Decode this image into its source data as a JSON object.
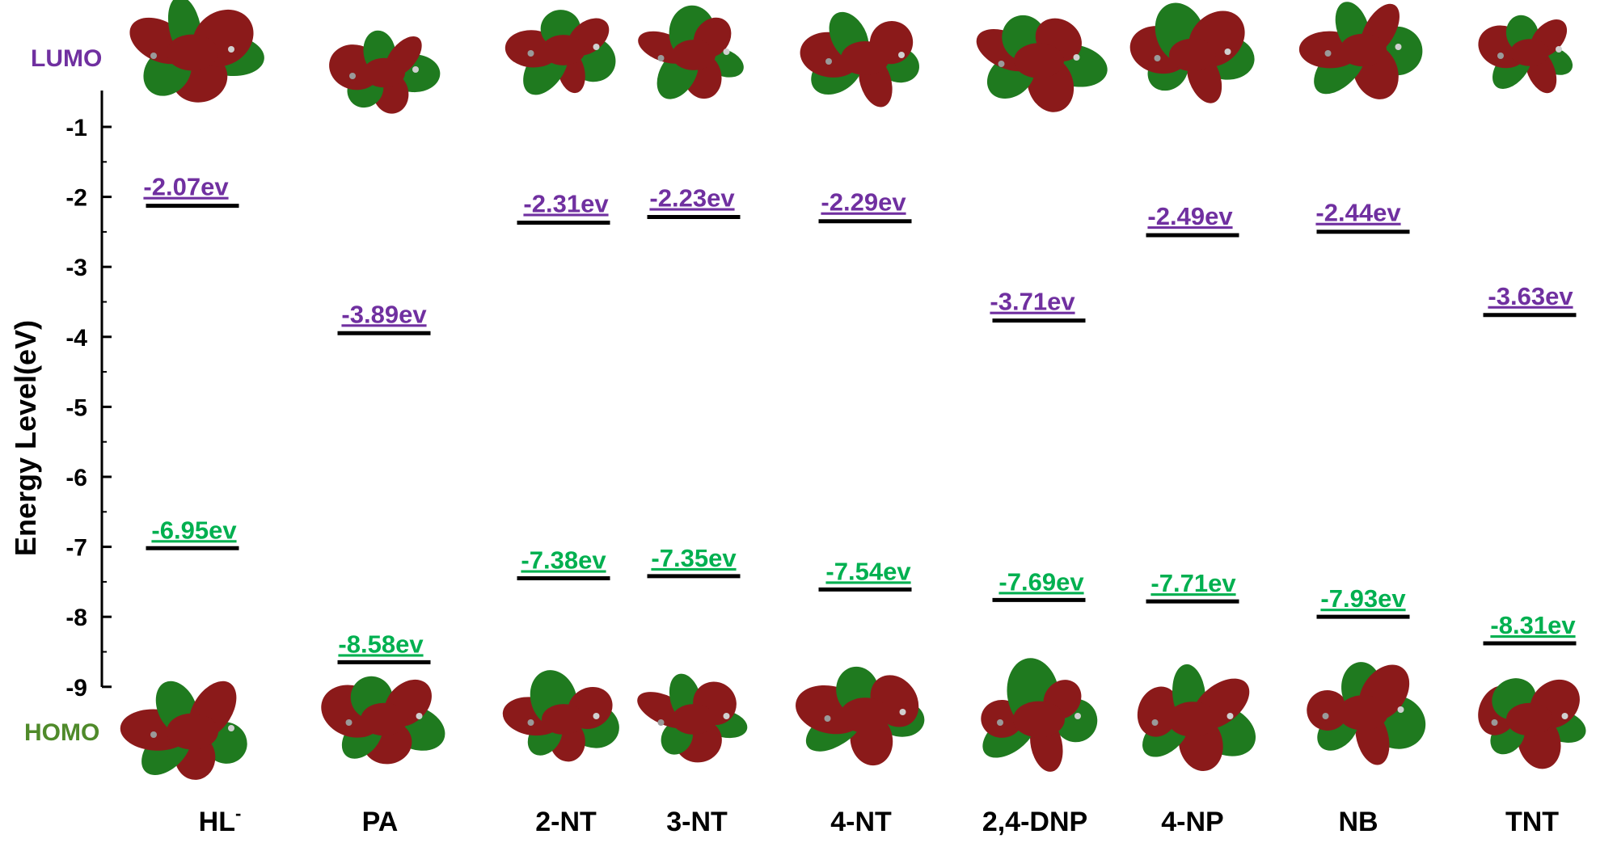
{
  "chart_data": {
    "type": "energy-level",
    "ylabel": "Energy Level(eV)",
    "yticks": [
      "-1",
      "-2",
      "-3",
      "-4",
      "-5",
      "-6",
      "-7",
      "-8",
      "-9"
    ],
    "ylim": [
      -9,
      -0.5
    ],
    "lumo_label": "LUMO",
    "homo_label": "HOMO",
    "colors": {
      "lumo": "#7030a0",
      "homo": "#00b050",
      "homo_tag": "#4f8a2a",
      "lobe_red": "#8b1a1a",
      "lobe_green": "#1f7a1f",
      "level_line": "#000000"
    },
    "series": [
      {
        "name": "LUMO",
        "values": [
          -2.07,
          -3.89,
          -2.31,
          -2.23,
          -2.29,
          -3.71,
          -2.49,
          -2.44,
          -3.63
        ]
      },
      {
        "name": "HOMO",
        "values": [
          -6.95,
          -8.58,
          -7.38,
          -7.35,
          -7.54,
          -7.69,
          -7.71,
          -7.93,
          -8.31
        ]
      }
    ],
    "categories": [
      "HL",
      "PA",
      "2-NT",
      "3-NT",
      "4-NT",
      "2,4-DNP",
      "4-NP",
      "NB",
      "TNT"
    ],
    "category_superscripts": [
      "-",
      "",
      "",
      "",
      "",
      "",
      "",
      "",
      ""
    ],
    "lumo_labels": [
      "-2.07ev",
      "-3.89ev",
      "-2.31ev",
      "-2.23ev",
      "-2.29ev",
      "-3.71ev",
      "-2.49ev",
      "-2.44ev",
      "-3.63ev"
    ],
    "homo_labels": [
      "-6.95ev",
      "-8.58ev",
      "-7.38ev",
      "-7.35ev",
      "-7.54ev",
      "-7.69ev",
      "-7.71ev",
      "-7.93ev",
      "-8.31ev"
    ]
  }
}
